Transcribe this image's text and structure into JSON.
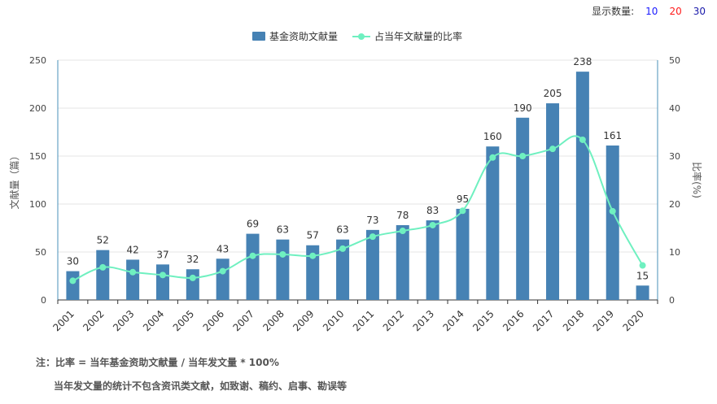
{
  "display_count": {
    "label": "显示数量:",
    "options": [
      {
        "value": "10",
        "color": "#1a1aff"
      },
      {
        "value": "20",
        "color": "#ff1a1a"
      },
      {
        "value": "30",
        "color": "#1a1aaa"
      }
    ]
  },
  "notes": {
    "line1": "注：比率 = 当年基金资助文献量 / 当年发文量 * 100%",
    "line2": "当年发文量的统计不包含资讯类文献，如致谢、稿约、启事、勘误等"
  },
  "colors": {
    "bar": "#4682b4",
    "line": "#6ff0c0",
    "axis_left": "#4a90b8",
    "grid": "#e6e6e6"
  },
  "chart_data": {
    "type": "bar",
    "categories": [
      "2001",
      "2002",
      "2003",
      "2004",
      "2005",
      "2006",
      "2007",
      "2008",
      "2009",
      "2010",
      "2011",
      "2012",
      "2013",
      "2014",
      "2015",
      "2016",
      "2017",
      "2018",
      "2019",
      "2020"
    ],
    "series": [
      {
        "name": "基金资助文献量",
        "type": "bar",
        "axis": "left",
        "values": [
          30,
          52,
          42,
          37,
          32,
          43,
          69,
          63,
          57,
          63,
          73,
          78,
          83,
          95,
          160,
          190,
          205,
          238,
          161,
          15
        ]
      },
      {
        "name": "占当年文献量的比率",
        "type": "line",
        "axis": "right",
        "values": [
          4.0,
          6.8,
          5.8,
          5.2,
          4.6,
          6.0,
          9.2,
          9.5,
          9.2,
          10.7,
          13.2,
          14.4,
          15.6,
          18.6,
          29.7,
          30.0,
          31.5,
          33.4,
          18.5,
          7.2
        ]
      }
    ],
    "ylabel": "文献量（篇）",
    "y2label": "比率(%)",
    "ylim": [
      0,
      250
    ],
    "y_ticks": [
      "0",
      "50",
      "100",
      "150",
      "200",
      "250"
    ],
    "y2lim": [
      0,
      50
    ],
    "y2_ticks": [
      "0",
      "10",
      "20",
      "30",
      "40",
      "50"
    ],
    "grid": true,
    "legend": "top-center"
  }
}
